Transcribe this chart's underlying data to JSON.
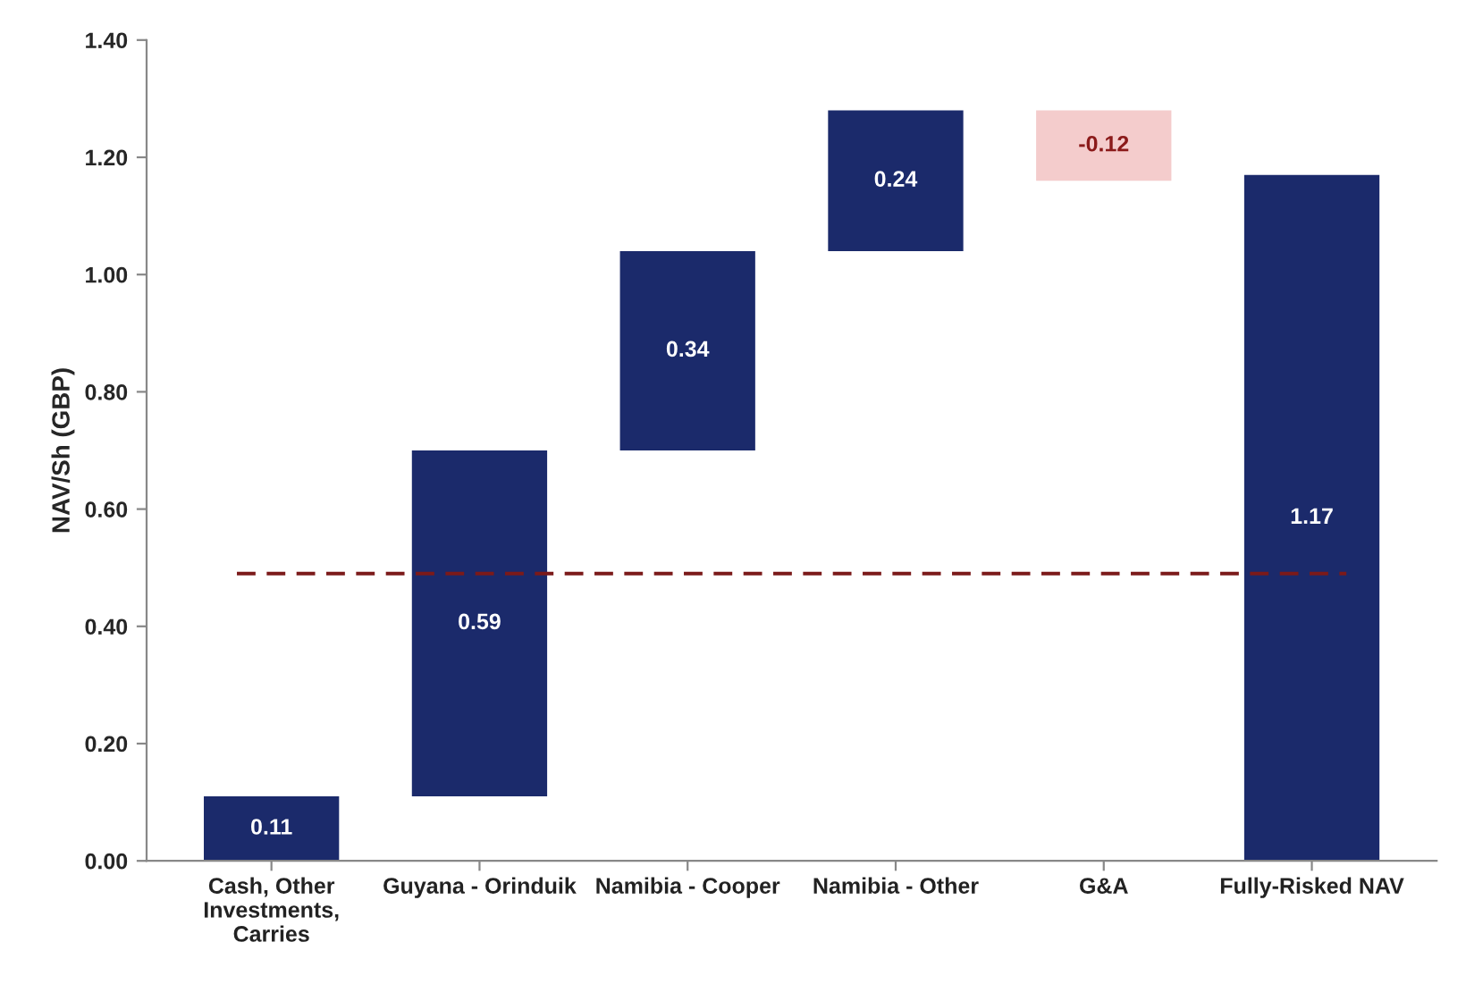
{
  "chart_data": {
    "type": "bar",
    "ylabel": "NAV/Sh (GBP)",
    "categories": [
      "Cash, Other Investments, Carries",
      "Guyana - Orinduik",
      "Namibia - Cooper",
      "Namibia - Other",
      "G&A",
      "Fully-Risked NAV"
    ],
    "values": [
      0.11,
      0.59,
      0.34,
      0.24,
      -0.12,
      1.17
    ],
    "base": [
      0,
      0.11,
      0.7,
      1.04,
      1.28,
      0
    ],
    "colors": [
      "#1b2a6b",
      "#1b2a6b",
      "#1b2a6b",
      "#1b2a6b",
      "#f4cccc",
      "#1b2a6b"
    ],
    "data_labels": true,
    "ylim": [
      0,
      1.4
    ],
    "yticks": [
      {
        "value": 0,
        "label": "0.00"
      },
      {
        "value": 0.2,
        "label": "0.20"
      },
      {
        "value": 0.4,
        "label": "0.40"
      },
      {
        "value": 0.6,
        "label": "0.60"
      },
      {
        "value": 0.8,
        "label": "0.80"
      },
      {
        "value": 1.0,
        "label": "1.00"
      },
      {
        "value": 1.2,
        "label": "1.20"
      },
      {
        "value": 1.4,
        "label": "1.40"
      }
    ],
    "ref_lines": [
      {
        "axis": "y",
        "value": 0.49,
        "label": null,
        "color": "#7b1a1a",
        "line_style": "dashed"
      }
    ],
    "grid": false,
    "legend": false
  }
}
